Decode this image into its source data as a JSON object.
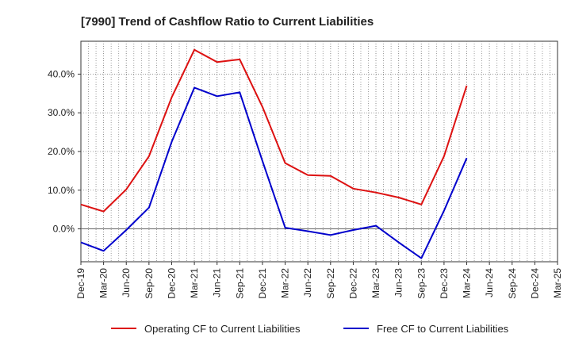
{
  "chart_data": {
    "type": "line",
    "title": "[7990]  Trend of Cashflow Ratio to Current Liabilities",
    "xlabel": "",
    "ylabel": "",
    "categories": [
      "Dec-19",
      "Mar-20",
      "Jun-20",
      "Sep-20",
      "Dec-20",
      "Mar-21",
      "Jun-21",
      "Sep-21",
      "Dec-21",
      "Mar-22",
      "Jun-22",
      "Sep-22",
      "Dec-22",
      "Mar-23",
      "Jun-23",
      "Sep-23",
      "Dec-23",
      "Mar-24",
      "Jun-24",
      "Sep-24",
      "Dec-24",
      "Mar-25"
    ],
    "y_ticks": [
      {
        "value": 0,
        "label": "0.0%"
      },
      {
        "value": 10,
        "label": "10.0%"
      },
      {
        "value": 20,
        "label": "20.0%"
      },
      {
        "value": 30,
        "label": "30.0%"
      },
      {
        "value": 40,
        "label": "40.0%"
      }
    ],
    "ylim": [
      -8.5,
      48.5
    ],
    "grid": true,
    "legend": "bottom",
    "series": [
      {
        "name": "Operating CF to Current Liabilities",
        "color": "#dd1111",
        "values": [
          6.3,
          4.5,
          10.2,
          18.8,
          34.0,
          46.3,
          43.1,
          43.8,
          31.5,
          17.0,
          13.9,
          13.7,
          10.4,
          9.4,
          8.1,
          6.3,
          18.8,
          37.0,
          null,
          null,
          null,
          null
        ]
      },
      {
        "name": "Free CF to Current Liabilities",
        "color": "#0000cc",
        "values": [
          -3.5,
          -5.7,
          -0.3,
          5.5,
          22.5,
          36.5,
          34.3,
          35.3,
          17.5,
          0.3,
          -0.6,
          -1.6,
          -0.3,
          0.8,
          -3.5,
          -7.6,
          4.7,
          18.3,
          null,
          null,
          null,
          null
        ]
      }
    ]
  }
}
